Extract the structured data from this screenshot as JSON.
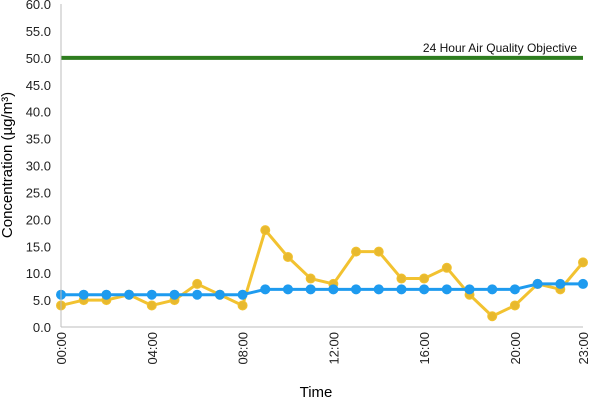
{
  "chart_data": {
    "type": "line",
    "xlabel": "Time",
    "ylabel": "Concentration (µg/m³)",
    "ylim": [
      0,
      60
    ],
    "y_ticks": [
      "0.0",
      "5.0",
      "10.0",
      "15.0",
      "20.0",
      "25.0",
      "30.0",
      "35.0",
      "40.0",
      "45.0",
      "50.0",
      "55.0",
      "60.0"
    ],
    "x_ticks": [
      "00:00",
      "04:00",
      "08:00",
      "12:00",
      "16:00",
      "20:00",
      "23:00"
    ],
    "x_tick_hours": [
      0,
      4,
      8,
      12,
      16,
      20,
      23
    ],
    "x": [
      0,
      1,
      2,
      3,
      4,
      5,
      6,
      7,
      8,
      9,
      10,
      11,
      12,
      13,
      14,
      15,
      16,
      17,
      18,
      19,
      20,
      21,
      22,
      23
    ],
    "grid": false,
    "legend": "none",
    "series": [
      {
        "color": "#f2c230",
        "marker_color": "#e8b92e",
        "values": [
          4,
          5,
          5,
          6,
          4,
          5,
          8,
          6,
          4,
          18,
          13,
          9,
          8,
          14,
          14,
          9,
          9,
          11,
          6,
          2,
          4,
          8,
          7,
          12
        ]
      },
      {
        "color": "#1e9bef",
        "marker_color": "#1e9bef",
        "values": [
          6,
          6,
          6,
          6,
          6,
          6,
          6,
          6,
          6,
          7,
          7,
          7,
          7,
          7,
          7,
          7,
          7,
          7,
          7,
          7,
          7,
          8,
          8,
          8
        ]
      }
    ],
    "reference_line": {
      "label": "24 Hour Air Quality Objective",
      "value": 50,
      "color": "#2e7d1f"
    }
  }
}
